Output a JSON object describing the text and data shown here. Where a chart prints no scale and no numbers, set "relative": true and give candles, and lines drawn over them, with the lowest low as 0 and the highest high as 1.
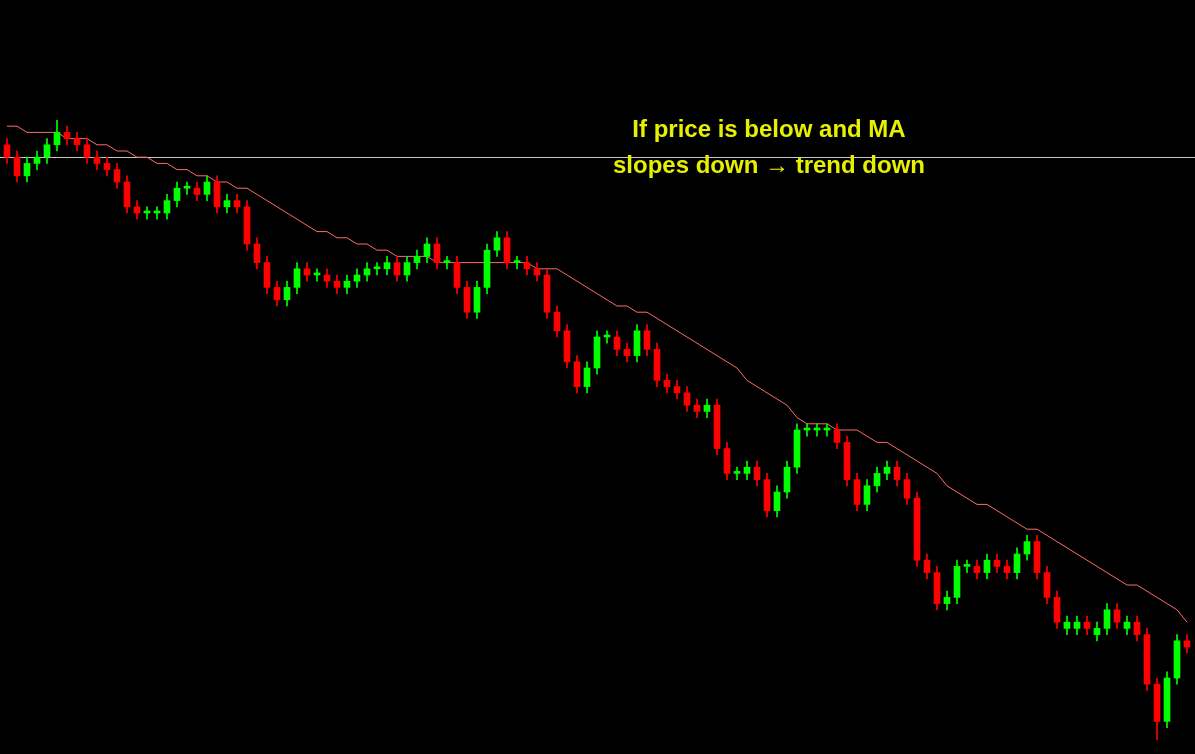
{
  "chart_data": {
    "type": "candlestick",
    "relative": true,
    "categories": [
      null,
      null,
      null,
      null,
      null,
      null,
      null,
      null,
      null,
      null,
      null,
      null,
      null,
      null,
      null,
      null,
      null,
      null,
      null,
      null,
      null,
      null,
      null,
      null,
      null,
      null,
      null,
      null,
      null,
      null,
      null,
      null,
      null,
      null,
      null,
      null,
      null,
      null,
      null,
      null,
      null,
      null,
      null,
      null,
      null,
      null,
      null,
      null,
      null,
      null,
      null,
      null,
      null,
      null,
      null,
      null,
      null,
      null,
      null,
      null,
      null,
      null,
      null,
      null,
      null,
      null,
      null,
      null,
      null,
      null,
      null,
      null,
      null,
      null,
      null,
      null,
      null,
      null,
      null,
      null,
      null,
      null,
      null,
      null,
      null,
      null,
      null,
      null,
      null,
      null,
      null,
      null,
      null,
      null,
      null,
      null,
      null,
      null,
      null,
      null,
      null,
      null,
      null,
      null,
      null,
      null,
      null,
      null,
      null,
      null,
      null,
      null,
      null,
      null,
      null,
      null,
      null,
      null,
      null
    ],
    "series": [
      {
        "type": "candlestick",
        "ohlc": [
          [
            0.96,
            0.97,
            0.93,
            0.94
          ],
          [
            0.94,
            0.95,
            0.9,
            0.91
          ],
          [
            0.91,
            0.94,
            0.9,
            0.93
          ],
          [
            0.93,
            0.95,
            0.92,
            0.94
          ],
          [
            0.94,
            0.97,
            0.93,
            0.96
          ],
          [
            0.96,
            1.0,
            0.95,
            0.98
          ],
          [
            0.98,
            0.99,
            0.96,
            0.97
          ],
          [
            0.97,
            0.98,
            0.95,
            0.96
          ],
          [
            0.96,
            0.97,
            0.93,
            0.94
          ],
          [
            0.94,
            0.95,
            0.92,
            0.93
          ],
          [
            0.93,
            0.94,
            0.91,
            0.92
          ],
          [
            0.92,
            0.93,
            0.89,
            0.9
          ],
          [
            0.9,
            0.91,
            0.85,
            0.86
          ],
          [
            0.86,
            0.87,
            0.84,
            0.85
          ],
          [
            0.85,
            0.86,
            0.84,
            0.85
          ],
          [
            0.85,
            0.86,
            0.84,
            0.85
          ],
          [
            0.85,
            0.88,
            0.84,
            0.87
          ],
          [
            0.87,
            0.9,
            0.86,
            0.89
          ],
          [
            0.89,
            0.9,
            0.88,
            0.89
          ],
          [
            0.89,
            0.9,
            0.87,
            0.88
          ],
          [
            0.88,
            0.91,
            0.87,
            0.9
          ],
          [
            0.9,
            0.91,
            0.85,
            0.86
          ],
          [
            0.86,
            0.88,
            0.85,
            0.87
          ],
          [
            0.87,
            0.88,
            0.85,
            0.86
          ],
          [
            0.86,
            0.87,
            0.79,
            0.8
          ],
          [
            0.8,
            0.81,
            0.76,
            0.77
          ],
          [
            0.77,
            0.78,
            0.72,
            0.73
          ],
          [
            0.73,
            0.74,
            0.7,
            0.71
          ],
          [
            0.71,
            0.74,
            0.7,
            0.73
          ],
          [
            0.73,
            0.77,
            0.72,
            0.76
          ],
          [
            0.76,
            0.77,
            0.74,
            0.75
          ],
          [
            0.75,
            0.76,
            0.74,
            0.75
          ],
          [
            0.75,
            0.76,
            0.73,
            0.74
          ],
          [
            0.74,
            0.75,
            0.72,
            0.73
          ],
          [
            0.73,
            0.75,
            0.72,
            0.74
          ],
          [
            0.74,
            0.76,
            0.73,
            0.75
          ],
          [
            0.75,
            0.77,
            0.74,
            0.76
          ],
          [
            0.76,
            0.77,
            0.75,
            0.76
          ],
          [
            0.76,
            0.78,
            0.75,
            0.77
          ],
          [
            0.77,
            0.78,
            0.74,
            0.75
          ],
          [
            0.75,
            0.78,
            0.74,
            0.77
          ],
          [
            0.77,
            0.79,
            0.76,
            0.78
          ],
          [
            0.78,
            0.81,
            0.77,
            0.8
          ],
          [
            0.8,
            0.81,
            0.76,
            0.77
          ],
          [
            0.77,
            0.78,
            0.76,
            0.77
          ],
          [
            0.77,
            0.78,
            0.72,
            0.73
          ],
          [
            0.73,
            0.74,
            0.68,
            0.69
          ],
          [
            0.69,
            0.74,
            0.68,
            0.73
          ],
          [
            0.73,
            0.8,
            0.72,
            0.79
          ],
          [
            0.79,
            0.82,
            0.78,
            0.81
          ],
          [
            0.81,
            0.82,
            0.76,
            0.77
          ],
          [
            0.77,
            0.78,
            0.76,
            0.77
          ],
          [
            0.77,
            0.78,
            0.75,
            0.76
          ],
          [
            0.76,
            0.77,
            0.74,
            0.75
          ],
          [
            0.75,
            0.76,
            0.68,
            0.69
          ],
          [
            0.69,
            0.7,
            0.65,
            0.66
          ],
          [
            0.66,
            0.67,
            0.6,
            0.61
          ],
          [
            0.61,
            0.62,
            0.56,
            0.57
          ],
          [
            0.57,
            0.61,
            0.56,
            0.6
          ],
          [
            0.6,
            0.66,
            0.59,
            0.65
          ],
          [
            0.65,
            0.66,
            0.64,
            0.65
          ],
          [
            0.65,
            0.66,
            0.62,
            0.63
          ],
          [
            0.63,
            0.64,
            0.61,
            0.62
          ],
          [
            0.62,
            0.67,
            0.61,
            0.66
          ],
          [
            0.66,
            0.67,
            0.62,
            0.63
          ],
          [
            0.63,
            0.64,
            0.57,
            0.58
          ],
          [
            0.58,
            0.59,
            0.56,
            0.57
          ],
          [
            0.57,
            0.58,
            0.55,
            0.56
          ],
          [
            0.56,
            0.57,
            0.53,
            0.54
          ],
          [
            0.54,
            0.55,
            0.52,
            0.53
          ],
          [
            0.53,
            0.55,
            0.52,
            0.54
          ],
          [
            0.54,
            0.55,
            0.46,
            0.47
          ],
          [
            0.47,
            0.48,
            0.42,
            0.43
          ],
          [
            0.43,
            0.44,
            0.42,
            0.43
          ],
          [
            0.43,
            0.45,
            0.42,
            0.44
          ],
          [
            0.44,
            0.45,
            0.41,
            0.42
          ],
          [
            0.42,
            0.43,
            0.36,
            0.37
          ],
          [
            0.37,
            0.41,
            0.36,
            0.4
          ],
          [
            0.4,
            0.45,
            0.39,
            0.44
          ],
          [
            0.44,
            0.51,
            0.43,
            0.5
          ],
          [
            0.5,
            0.51,
            0.49,
            0.5
          ],
          [
            0.5,
            0.51,
            0.49,
            0.5
          ],
          [
            0.5,
            0.51,
            0.49,
            0.5
          ],
          [
            0.5,
            0.51,
            0.47,
            0.48
          ],
          [
            0.48,
            0.49,
            0.41,
            0.42
          ],
          [
            0.42,
            0.43,
            0.37,
            0.38
          ],
          [
            0.38,
            0.42,
            0.37,
            0.41
          ],
          [
            0.41,
            0.44,
            0.4,
            0.43
          ],
          [
            0.43,
            0.45,
            0.42,
            0.44
          ],
          [
            0.44,
            0.45,
            0.41,
            0.42
          ],
          [
            0.42,
            0.43,
            0.38,
            0.39
          ],
          [
            0.39,
            0.4,
            0.28,
            0.29
          ],
          [
            0.29,
            0.3,
            0.26,
            0.27
          ],
          [
            0.27,
            0.28,
            0.21,
            0.22
          ],
          [
            0.22,
            0.24,
            0.21,
            0.23
          ],
          [
            0.23,
            0.29,
            0.22,
            0.28
          ],
          [
            0.28,
            0.29,
            0.27,
            0.28
          ],
          [
            0.28,
            0.29,
            0.26,
            0.27
          ],
          [
            0.27,
            0.3,
            0.26,
            0.29
          ],
          [
            0.29,
            0.3,
            0.27,
            0.28
          ],
          [
            0.28,
            0.29,
            0.26,
            0.27
          ],
          [
            0.27,
            0.31,
            0.26,
            0.3
          ],
          [
            0.3,
            0.33,
            0.29,
            0.32
          ],
          [
            0.32,
            0.33,
            0.26,
            0.27
          ],
          [
            0.27,
            0.28,
            0.22,
            0.23
          ],
          [
            0.23,
            0.24,
            0.18,
            0.19
          ],
          [
            0.18,
            0.2,
            0.17,
            0.19
          ],
          [
            0.18,
            0.2,
            0.17,
            0.19
          ],
          [
            0.19,
            0.2,
            0.17,
            0.18
          ],
          [
            0.17,
            0.19,
            0.16,
            0.18
          ],
          [
            0.18,
            0.22,
            0.17,
            0.21
          ],
          [
            0.21,
            0.22,
            0.18,
            0.19
          ],
          [
            0.18,
            0.2,
            0.17,
            0.19
          ],
          [
            0.19,
            0.2,
            0.16,
            0.17
          ],
          [
            0.17,
            0.18,
            0.08,
            0.09
          ],
          [
            0.09,
            0.1,
            0.0,
            0.03
          ],
          [
            0.03,
            0.11,
            0.02,
            0.1
          ],
          [
            0.1,
            0.17,
            0.09,
            0.16
          ],
          [
            0.16,
            0.17,
            0.14,
            0.15
          ]
        ],
        "colors": [
          "#ff0000",
          "#ff0000",
          "#00ff00",
          "#00ff00",
          "#00ff00",
          "#00ff00",
          "#ff0000",
          "#ff0000",
          "#ff0000",
          "#ff0000",
          "#ff0000",
          "#ff0000",
          "#ff0000",
          "#ff0000",
          "#00ff00",
          "#00ff00",
          "#00ff00",
          "#00ff00",
          "#00ff00",
          "#ff0000",
          "#00ff00",
          "#ff0000",
          "#00ff00",
          "#ff0000",
          "#ff0000",
          "#ff0000",
          "#ff0000",
          "#ff0000",
          "#00ff00",
          "#00ff00",
          "#ff0000",
          "#00ff00",
          "#ff0000",
          "#ff0000",
          "#00ff00",
          "#00ff00",
          "#00ff00",
          "#00ff00",
          "#00ff00",
          "#ff0000",
          "#00ff00",
          "#00ff00",
          "#00ff00",
          "#ff0000",
          "#00ff00",
          "#ff0000",
          "#ff0000",
          "#00ff00",
          "#00ff00",
          "#00ff00",
          "#ff0000",
          "#00ff00",
          "#ff0000",
          "#ff0000",
          "#ff0000",
          "#ff0000",
          "#ff0000",
          "#ff0000",
          "#00ff00",
          "#00ff00",
          "#00ff00",
          "#ff0000",
          "#ff0000",
          "#00ff00",
          "#ff0000",
          "#ff0000",
          "#ff0000",
          "#ff0000",
          "#ff0000",
          "#ff0000",
          "#00ff00",
          "#ff0000",
          "#ff0000",
          "#00ff00",
          "#00ff00",
          "#ff0000",
          "#ff0000",
          "#00ff00",
          "#00ff00",
          "#00ff00",
          "#00ff00",
          "#00ff00",
          "#00ff00",
          "#ff0000",
          "#ff0000",
          "#ff0000",
          "#00ff00",
          "#00ff00",
          "#00ff00",
          "#ff0000",
          "#ff0000",
          "#ff0000",
          "#ff0000",
          "#ff0000",
          "#00ff00",
          "#00ff00",
          "#00ff00",
          "#ff0000",
          "#00ff00",
          "#ff0000",
          "#ff0000",
          "#00ff00",
          "#00ff00",
          "#ff0000",
          "#ff0000",
          "#ff0000",
          "#00ff00",
          "#00ff00",
          "#ff0000",
          "#00ff00",
          "#00ff00",
          "#ff0000",
          "#00ff00",
          "#ff0000",
          "#ff0000",
          "#ff0000",
          "#00ff00",
          "#00ff00",
          "#ff0000"
        ]
      },
      {
        "type": "line",
        "color": "#ff6a6a",
        "values": [
          0.99,
          0.99,
          0.98,
          0.98,
          0.98,
          0.98,
          0.97,
          0.97,
          0.97,
          0.96,
          0.96,
          0.95,
          0.95,
          0.94,
          0.94,
          0.93,
          0.93,
          0.92,
          0.92,
          0.91,
          0.91,
          0.9,
          0.9,
          0.89,
          0.89,
          0.88,
          0.87,
          0.86,
          0.85,
          0.84,
          0.83,
          0.82,
          0.82,
          0.81,
          0.81,
          0.8,
          0.8,
          0.79,
          0.79,
          0.78,
          0.78,
          0.78,
          0.78,
          0.77,
          0.77,
          0.77,
          0.77,
          0.77,
          0.77,
          0.77,
          0.77,
          0.77,
          0.77,
          0.76,
          0.76,
          0.76,
          0.75,
          0.74,
          0.73,
          0.72,
          0.71,
          0.7,
          0.7,
          0.69,
          0.69,
          0.68,
          0.67,
          0.66,
          0.65,
          0.64,
          0.63,
          0.62,
          0.61,
          0.6,
          0.58,
          0.57,
          0.56,
          0.55,
          0.54,
          0.52,
          0.51,
          0.51,
          0.51,
          0.5,
          0.5,
          0.5,
          0.49,
          0.48,
          0.48,
          0.47,
          0.46,
          0.45,
          0.44,
          0.43,
          0.41,
          0.4,
          0.39,
          0.38,
          0.38,
          0.37,
          0.36,
          0.35,
          0.34,
          0.34,
          0.33,
          0.32,
          0.31,
          0.3,
          0.29,
          0.28,
          0.27,
          0.26,
          0.25,
          0.25,
          0.24,
          0.23,
          0.22,
          0.21,
          0.19
        ]
      }
    ],
    "ref_lines": [
      {
        "axis": "y",
        "value": 0.94,
        "color": "#c8c8c8"
      }
    ],
    "annotations": [
      "If price is below and MA slopes down → trend down"
    ]
  }
}
